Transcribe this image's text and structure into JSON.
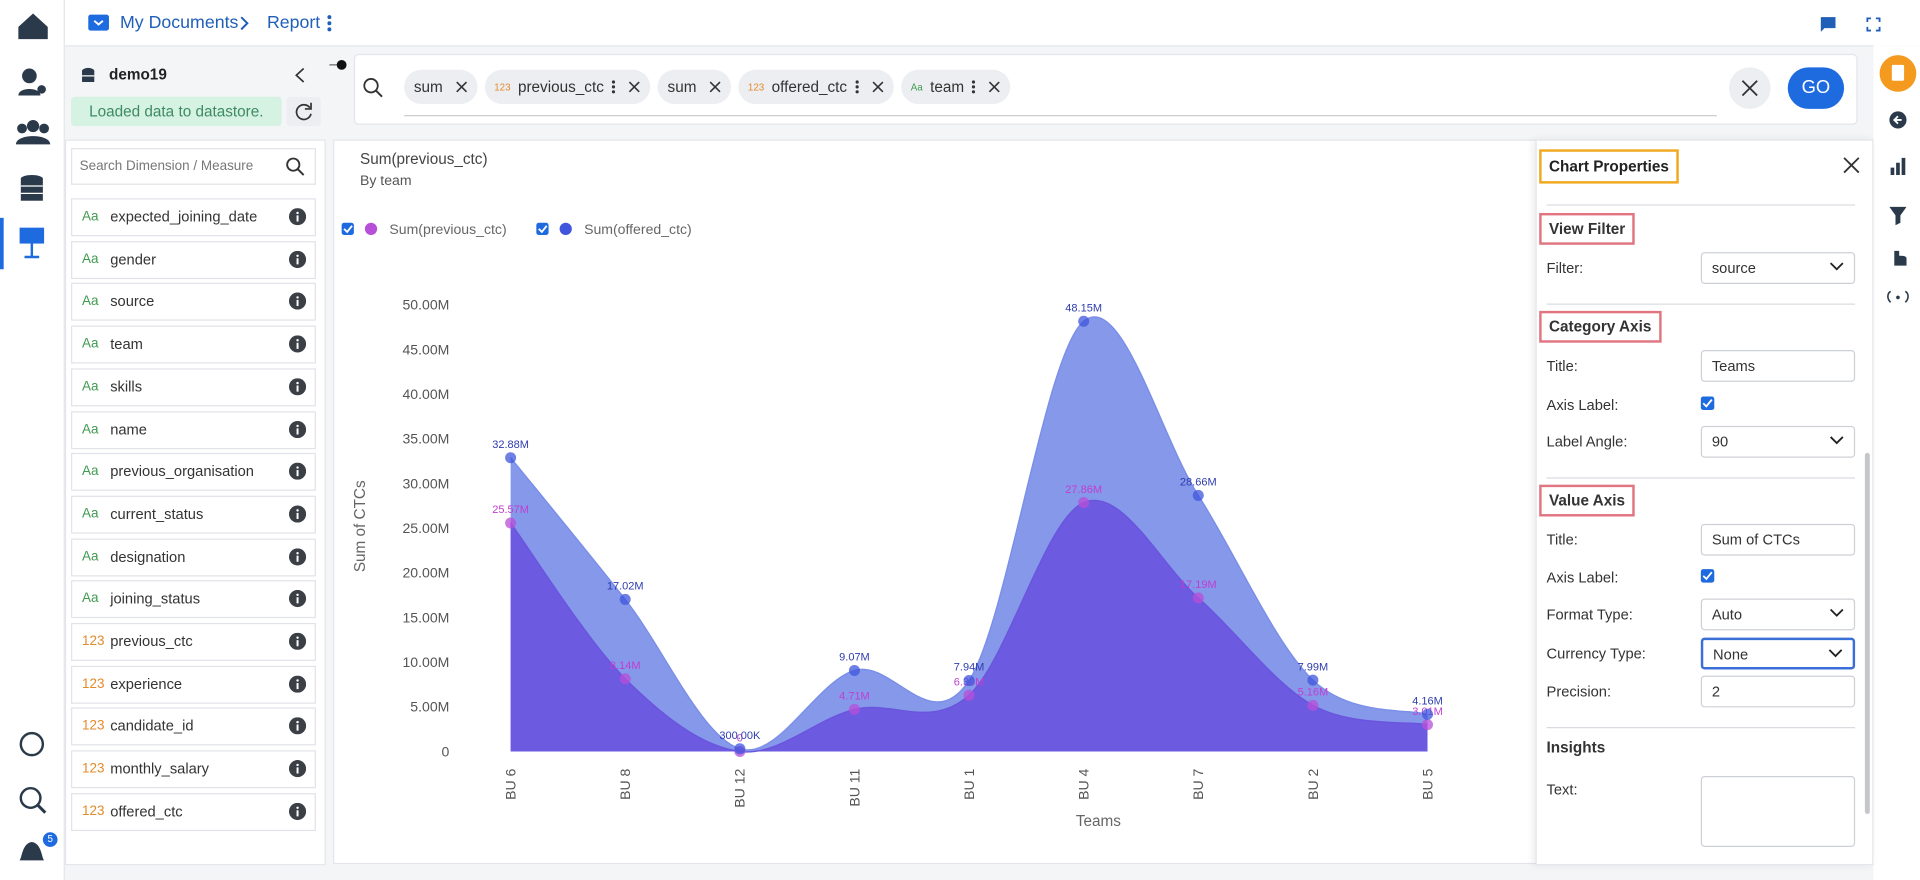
{
  "breadcrumb": {
    "folder": "My Documents",
    "page": "Report"
  },
  "datastore": {
    "name": "demo19",
    "status": "Loaded data to datastore."
  },
  "search": {
    "placeholder": "Search Dimension / Measure"
  },
  "type_colors": {
    "Aa": "#3f9a4f",
    "123": "#e38b2c"
  },
  "fields": [
    {
      "type": "Aa",
      "name": "expected_joining_date"
    },
    {
      "type": "Aa",
      "name": "gender"
    },
    {
      "type": "Aa",
      "name": "source"
    },
    {
      "type": "Aa",
      "name": "team"
    },
    {
      "type": "Aa",
      "name": "skills"
    },
    {
      "type": "Aa",
      "name": "name"
    },
    {
      "type": "Aa",
      "name": "previous_organisation"
    },
    {
      "type": "Aa",
      "name": "current_status"
    },
    {
      "type": "Aa",
      "name": "designation"
    },
    {
      "type": "Aa",
      "name": "joining_status"
    },
    {
      "type": "123",
      "name": "previous_ctc"
    },
    {
      "type": "123",
      "name": "experience"
    },
    {
      "type": "123",
      "name": "candidate_id"
    },
    {
      "type": "123",
      "name": "monthly_salary"
    },
    {
      "type": "123",
      "name": "offered_ctc"
    }
  ],
  "query_chips": [
    {
      "label": "sum"
    },
    {
      "type": "123",
      "label": "previous_ctc"
    },
    {
      "label": "sum"
    },
    {
      "type": "123",
      "label": "offered_ctc"
    },
    {
      "type": "Aa",
      "label": "team"
    }
  ],
  "go_button": "GO",
  "notification_count": 5,
  "chart_data": {
    "type": "area",
    "title": "Sum(previous_ctc)",
    "subtitle": "By team",
    "x_label": "Teams",
    "y_label": "Sum of CTCs",
    "smooth": true,
    "grid": false,
    "categories": [
      "BU 6",
      "BU 8",
      "BU 12",
      "BU 11",
      "BU 1",
      "BU 4",
      "BU 7",
      "BU 2",
      "BU 5"
    ],
    "series": [
      {
        "name": "Sum(previous_ctc)",
        "color": "#b84fd9",
        "area_color": "#6a55de",
        "label_color": "#c03ed0",
        "values": [
          25570000,
          8140000,
          0,
          4710000,
          6300000,
          27860000,
          17190000,
          5160000,
          3010000
        ],
        "value_labels": [
          "25.57M",
          "8.14M",
          "0",
          "4.71M",
          "6.30M",
          "27.86M",
          "17.19M",
          "5.16M",
          "3.01M"
        ]
      },
      {
        "name": "Sum(offered_ctc)",
        "color": "#3f56dc",
        "area_color": "#7b8fe8",
        "label_color": "#2e3cae",
        "values": [
          32880000,
          17020000,
          300000,
          9070000,
          7940000,
          48150000,
          28660000,
          7990000,
          4160000
        ],
        "value_labels": [
          "32.88M",
          "17.02M",
          "300.00K",
          "9.07M",
          "7.94M",
          "48.15M",
          "28.66M",
          "7.99M",
          "4.16M"
        ]
      }
    ],
    "ylim": [
      0,
      50000000
    ],
    "yticks": [
      0,
      {
        "value": 5000000,
        "label": "5.00M"
      },
      {
        "value": 10000000,
        "label": "10.00M"
      },
      {
        "value": 15000000,
        "label": "15.00M"
      },
      {
        "value": 20000000,
        "label": "20.00M"
      },
      {
        "value": 25000000,
        "label": "25.00M"
      },
      {
        "value": 30000000,
        "label": "30.00M"
      },
      {
        "value": 35000000,
        "label": "35.00M"
      },
      {
        "value": 40000000,
        "label": "40.00M"
      },
      {
        "value": 45000000,
        "label": "45.00M"
      },
      {
        "value": 50000000,
        "label": "50.00M"
      }
    ]
  },
  "properties": {
    "title": "Chart Properties",
    "sections": [
      {
        "heading": "View Filter",
        "highlight": true,
        "fields": [
          {
            "label": "Filter:",
            "kind": "select",
            "value": "source"
          }
        ]
      },
      {
        "heading": "Category Axis",
        "highlight": true,
        "fields": [
          {
            "label": "Title:",
            "kind": "input",
            "value": "Teams"
          },
          {
            "label": "Axis Label:",
            "kind": "checkbox",
            "value": true
          },
          {
            "label": "Label Angle:",
            "kind": "select",
            "value": "90"
          }
        ]
      },
      {
        "heading": "Value Axis",
        "highlight": true,
        "fields": [
          {
            "label": "Title:",
            "kind": "input",
            "value": "Sum of CTCs"
          },
          {
            "label": "Axis Label:",
            "kind": "checkbox",
            "value": true
          },
          {
            "label": "Format Type:",
            "kind": "select",
            "value": "Auto"
          },
          {
            "label": "Currency Type:",
            "kind": "select",
            "value": "None"
          },
          {
            "label": "Precision:",
            "kind": "input",
            "value": "2"
          }
        ]
      },
      {
        "heading": "Insights",
        "highlight": false,
        "fields": [
          {
            "label": "Text:",
            "kind": "textarea"
          }
        ]
      }
    ]
  }
}
